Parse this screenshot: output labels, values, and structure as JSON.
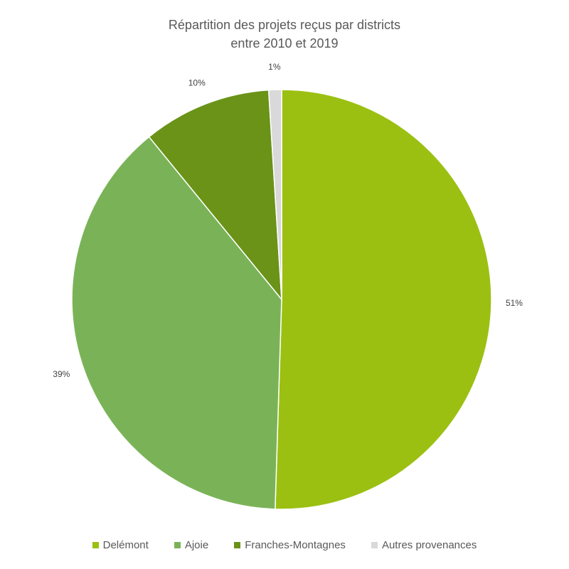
{
  "chart_data": {
    "type": "pie",
    "title_lines": [
      "Répartition des projets reçus par districts",
      "entre 2010 et 2019"
    ],
    "slices": [
      {
        "name": "Delémont",
        "value": 51,
        "label": "51%",
        "color": "#9BC012"
      },
      {
        "name": "Ajoie",
        "value": 39,
        "label": "39%",
        "color": "#7AB357"
      },
      {
        "name": "Franches-Montagnes",
        "value": 10,
        "label": "10%",
        "color": "#6A9318"
      },
      {
        "name": "Autres provenances",
        "value": 1,
        "label": "1%",
        "color": "#D9D9D9"
      }
    ],
    "legend_position": "bottom"
  }
}
